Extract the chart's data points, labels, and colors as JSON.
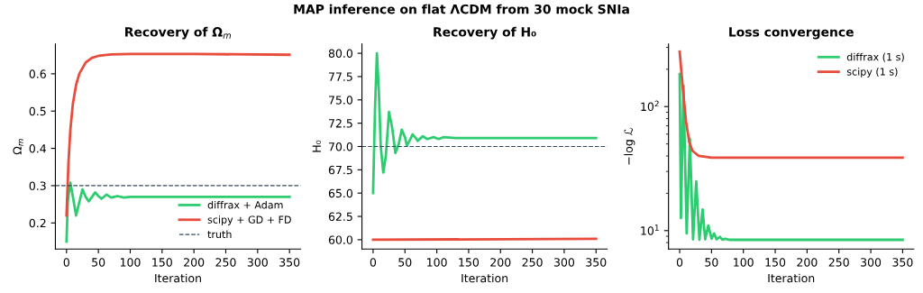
{
  "chart_data": [
    {
      "type": "line",
      "title": "Recovery of Ω$_{m}$",
      "xlabel": "Iteration",
      "ylabel": "Ω$_{m}$",
      "annotations": [
        "MAP inference on flat ΛCDM from 30 mock SNIa"
      ],
      "xlim": [
        -17.5,
        367.5
      ],
      "xticks": [
        0,
        50,
        100,
        150,
        200,
        250,
        300,
        350
      ],
      "ylim": [
        0.13,
        0.68
      ],
      "yticks": [
        0.2,
        0.3,
        0.4,
        0.5,
        0.6
      ],
      "grid": false,
      "legend": "lower right",
      "series": [
        {
          "name": "diffrax + Adam",
          "color": "#2ecc71",
          "x": [
            0,
            2,
            6,
            10,
            15,
            20,
            25,
            30,
            35,
            40,
            45,
            50,
            55,
            60,
            63,
            70,
            75,
            80,
            90,
            100,
            120,
            350
          ],
          "values": [
            0.15,
            0.26,
            0.308,
            0.27,
            0.22,
            0.255,
            0.29,
            0.27,
            0.258,
            0.27,
            0.282,
            0.272,
            0.265,
            0.272,
            0.276,
            0.268,
            0.27,
            0.272,
            0.268,
            0.27,
            0.27,
            0.27
          ]
        },
        {
          "name": "scipy + GD + FD",
          "color": "#e74c3c",
          "x": [
            0,
            3,
            6,
            10,
            15,
            20,
            30,
            40,
            50,
            70,
            100,
            200,
            350
          ],
          "values": [
            0.22,
            0.36,
            0.45,
            0.52,
            0.57,
            0.6,
            0.63,
            0.643,
            0.648,
            0.652,
            0.653,
            0.653,
            0.651
          ]
        }
      ],
      "ref_lines": [
        {
          "axis": "y",
          "value": 0.3,
          "label": "truth",
          "color": "#34495e",
          "line_style": "dashed"
        }
      ]
    },
    {
      "type": "line",
      "title": "Recovery of H₀",
      "xlabel": "Iteration",
      "ylabel": "H₀",
      "xlim": [
        -17.5,
        367.5
      ],
      "xticks": [
        0,
        50,
        100,
        150,
        200,
        250,
        300,
        350
      ],
      "ylim": [
        59,
        81
      ],
      "yticks": [
        {
          "value": 60,
          "label": "60.0"
        },
        {
          "value": 62.5,
          "label": "62.5"
        },
        {
          "value": 65,
          "label": "65.0"
        },
        {
          "value": 67.5,
          "label": "67.5"
        },
        {
          "value": 70,
          "label": "70.0"
        },
        {
          "value": 72.5,
          "label": "72.5"
        },
        {
          "value": 75,
          "label": "75.0"
        },
        {
          "value": 77.5,
          "label": "77.5"
        },
        {
          "value": 80,
          "label": "80.0"
        }
      ],
      "grid": false,
      "series": [
        {
          "color": "#2ecc71",
          "x": [
            0,
            3,
            6,
            9,
            12,
            16,
            20,
            25,
            30,
            35,
            40,
            45,
            50,
            53,
            57,
            62,
            67,
            70,
            78,
            85,
            95,
            103,
            110,
            130,
            350
          ],
          "values": [
            65,
            74,
            80,
            76,
            70,
            67.2,
            69,
            73.7,
            72,
            69.3,
            70.2,
            71.8,
            71,
            70.1,
            70.6,
            71.3,
            70.9,
            70.6,
            71.1,
            70.8,
            71,
            70.8,
            71,
            70.9,
            70.9
          ]
        },
        {
          "color": "#e74c3c",
          "x": [
            0,
            350
          ],
          "values": [
            60,
            60.1
          ]
        }
      ],
      "ref_lines": [
        {
          "axis": "y",
          "value": 70,
          "color": "#34495e",
          "line_style": "dashed"
        }
      ]
    },
    {
      "type": "line",
      "title": "Loss convergence",
      "xlabel": "Iteration",
      "ylabel": "−log ℒ",
      "log": "y",
      "xlim": [
        -17.5,
        367.5
      ],
      "xticks": [
        0,
        50,
        100,
        150,
        200,
        250,
        300,
        350
      ],
      "ylim": [
        7.1,
        320
      ],
      "yticks": [
        {
          "value": 10,
          "label": "10$^{1}$"
        },
        {
          "value": 100,
          "label": "10$^{2}$"
        }
      ],
      "grid": false,
      "legend": "top right",
      "series": [
        {
          "name": "diffrax (1 s)",
          "color": "#2ecc71",
          "x": [
            0,
            2,
            6,
            11,
            16,
            21,
            26,
            31,
            36,
            40,
            45,
            50,
            54,
            58,
            63,
            67,
            72,
            78,
            350
          ],
          "values": [
            183,
            12.6,
            148,
            9.5,
            55,
            8.5,
            25,
            8.45,
            14.8,
            8.5,
            11,
            8.6,
            9.5,
            8.5,
            8.9,
            8.45,
            8.6,
            8.43,
            8.43
          ]
        },
        {
          "name": "scipy (1 s)",
          "color": "#e74c3c",
          "x": [
            0,
            5,
            10,
            15,
            20,
            30,
            50,
            350
          ],
          "values": [
            277,
            140,
            76,
            52,
            44,
            40,
            38.8,
            38.7
          ]
        }
      ]
    }
  ]
}
